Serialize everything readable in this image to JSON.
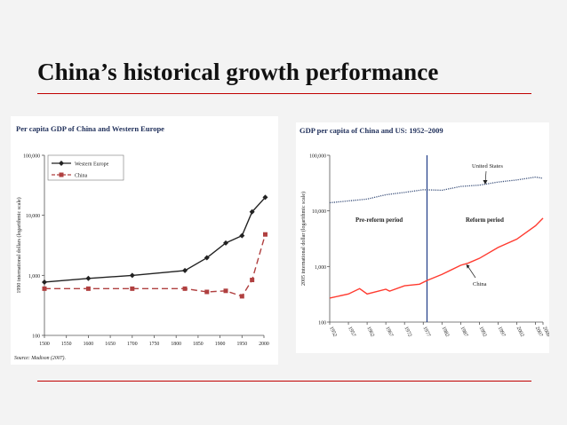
{
  "slide": {
    "title": "China’s historical growth performance",
    "accent_color": "#c00000",
    "rule_color": "#c00000"
  },
  "chart_data": [
    {
      "type": "line",
      "title": "Per capita GDP of China and Western Europe",
      "xlabel": "",
      "ylabel": "1990 international dollars (logarithmic scale)",
      "y_scale": "log",
      "ylim": [
        100,
        100000
      ],
      "xlim": [
        1500,
        2000
      ],
      "x_ticks": [
        "1500",
        "1550",
        "1600",
        "1650",
        "1700",
        "1750",
        "1800",
        "1850",
        "1900",
        "1950",
        "2000"
      ],
      "y_ticks": [
        "100",
        "1,000",
        "10,000",
        "100,000"
      ],
      "legend_position": "top-left",
      "source": "Source: Madison (2007).",
      "grid": false,
      "series": [
        {
          "name": "Western Europe",
          "color": "#222222",
          "marker": "diamond",
          "dash": "solid",
          "points": [
            [
              1500,
              771
            ],
            [
              1600,
              889
            ],
            [
              1700,
              997
            ],
            [
              1820,
              1202
            ],
            [
              1870,
              1960
            ],
            [
              1913,
              3457
            ],
            [
              1950,
              4578
            ],
            [
              1973,
              11417
            ],
            [
              2003,
              19912
            ]
          ]
        },
        {
          "name": "China",
          "color": "#b04040",
          "marker": "square",
          "dash": "dashed",
          "points": [
            [
              1500,
              600
            ],
            [
              1600,
              600
            ],
            [
              1700,
              600
            ],
            [
              1820,
              600
            ],
            [
              1870,
              530
            ],
            [
              1913,
              552
            ],
            [
              1950,
              448
            ],
            [
              1973,
              838
            ],
            [
              2003,
              4803
            ]
          ]
        }
      ]
    },
    {
      "type": "line",
      "title": "GDP per capita of China and US: 1952–2009",
      "xlabel": "",
      "ylabel": "2005 international dollar (logarithmic scale)",
      "y_scale": "log",
      "ylim": [
        100,
        100000
      ],
      "xlim": [
        1952,
        2009
      ],
      "x_ticks": [
        "1952",
        "1957",
        "1962",
        "1967",
        "1972",
        "1977",
        "1982",
        "1987",
        "1992",
        "1997",
        "2002",
        "2007",
        "2009"
      ],
      "y_ticks": [
        "100",
        "1,000",
        "10,000",
        "100,000"
      ],
      "grid": false,
      "divider_year": 1978,
      "divider_color": "#1f3c88",
      "period_labels": [
        "Pre-reform period",
        "Reform period"
      ],
      "annotations": [
        "United States",
        "China"
      ],
      "series": [
        {
          "name": "United States",
          "color": "#3a4f7a",
          "dash": "dotted",
          "points": [
            [
              1952,
              14000
            ],
            [
              1957,
              15100
            ],
            [
              1962,
              16300
            ],
            [
              1967,
              19500
            ],
            [
              1972,
              21500
            ],
            [
              1977,
              24000
            ],
            [
              1982,
              23500
            ],
            [
              1987,
              27500
            ],
            [
              1992,
              29000
            ],
            [
              1997,
              33000
            ],
            [
              2002,
              36000
            ],
            [
              2007,
              40500
            ],
            [
              2009,
              38500
            ]
          ]
        },
        {
          "name": "China",
          "color": "#ff3b30",
          "dash": "solid",
          "points": [
            [
              1952,
              270
            ],
            [
              1957,
              320
            ],
            [
              1960,
              400
            ],
            [
              1962,
              320
            ],
            [
              1967,
              390
            ],
            [
              1968,
              360
            ],
            [
              1972,
              450
            ],
            [
              1976,
              480
            ],
            [
              1978,
              560
            ],
            [
              1982,
              720
            ],
            [
              1987,
              1050
            ],
            [
              1989,
              1150
            ],
            [
              1992,
              1400
            ],
            [
              1997,
              2200
            ],
            [
              2002,
              3100
            ],
            [
              2007,
              5400
            ],
            [
              2009,
              7400
            ]
          ]
        }
      ]
    }
  ]
}
